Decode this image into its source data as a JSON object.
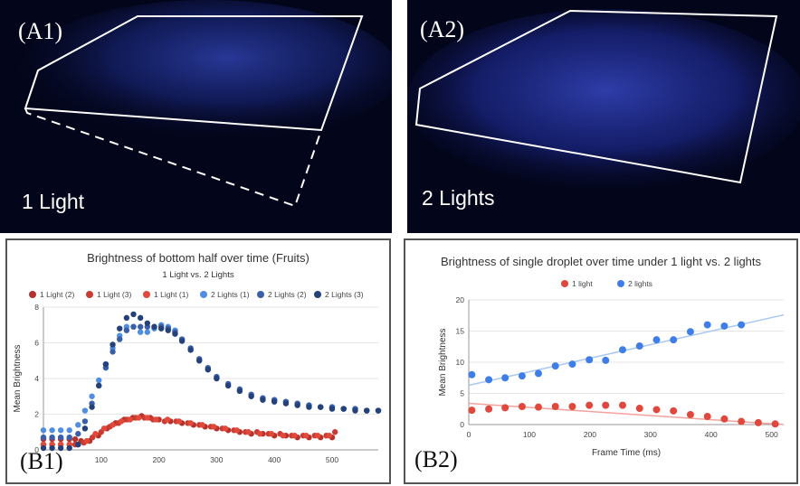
{
  "panels": {
    "a1": {
      "label": "(A1)",
      "caption": "1 Light"
    },
    "a2": {
      "label": "(A2)",
      "caption": "2 Lights"
    },
    "b1": {
      "label": "(B1)"
    },
    "b2": {
      "label": "(B2)"
    }
  },
  "colors": {
    "red_dark": "#b5312c",
    "red_mid": "#cc3a31",
    "red_light": "#e04a3a",
    "blue_light": "#4f8ee0",
    "blue_mid": "#3a5fa8",
    "blue_dark": "#25417a",
    "b2_red": "#e0483e",
    "b2_blue": "#3f7ee8",
    "b2_red_fit": "#f2a29b",
    "b2_blue_fit": "#a9c8f1"
  },
  "chart_data": [
    {
      "id": "B1",
      "type": "scatter",
      "title": "Brightness of bottom half over time (Fruits)",
      "subtitle": "1 Light vs. 2 Lights",
      "xlabel": "",
      "ylabel": "Mean Brightness",
      "xlim": [
        0,
        580
      ],
      "ylim": [
        0,
        8
      ],
      "xticks": [
        100,
        200,
        300,
        400,
        500
      ],
      "yticks": [
        0,
        2,
        4,
        6,
        8
      ],
      "legend": [
        "1 Light (2)",
        "1 Light (3)",
        "1 Light (1)",
        "2 Lights (1)",
        "2 Lights (2)",
        "2 Lights (3)"
      ],
      "series": [
        {
          "name": "1 Light (2)",
          "color_key": "red_dark",
          "x": [
            0,
            15,
            30,
            45,
            55,
            65,
            80,
            95,
            110,
            125,
            140,
            155,
            170,
            185,
            200,
            220,
            240,
            260,
            280,
            300,
            320,
            340,
            360,
            380,
            400,
            420,
            440,
            460,
            480,
            500
          ],
          "y": [
            0.6,
            0.6,
            0.6,
            0.6,
            0.6,
            0.5,
            0.5,
            0.8,
            1.2,
            1.5,
            1.7,
            1.8,
            1.9,
            1.8,
            1.7,
            1.6,
            1.5,
            1.4,
            1.3,
            1.2,
            1.1,
            1.0,
            0.9,
            0.9,
            0.8,
            0.8,
            0.7,
            0.7,
            0.7,
            0.7
          ]
        },
        {
          "name": "1 Light (3)",
          "color_key": "red_mid",
          "x": [
            0,
            15,
            30,
            45,
            55,
            70,
            85,
            100,
            115,
            130,
            145,
            160,
            175,
            190,
            210,
            230,
            250,
            270,
            290,
            310,
            330,
            350,
            370,
            390,
            410,
            430,
            450,
            470,
            490,
            505
          ],
          "y": [
            0.3,
            0.3,
            0.3,
            0.3,
            0.3,
            0.4,
            0.7,
            1.0,
            1.3,
            1.5,
            1.7,
            1.8,
            1.8,
            1.7,
            1.6,
            1.6,
            1.5,
            1.4,
            1.3,
            1.2,
            1.1,
            1.0,
            1.0,
            0.9,
            0.9,
            0.8,
            0.8,
            0.8,
            0.8,
            1.0
          ]
        },
        {
          "name": "1 Light (1)",
          "color_key": "red_light",
          "x": [
            0,
            15,
            30,
            45,
            60,
            75,
            90,
            105,
            120,
            135,
            150,
            165,
            180,
            195,
            215,
            235,
            255,
            275,
            295,
            315,
            335,
            355,
            375,
            395,
            415,
            435,
            455,
            475,
            495
          ],
          "y": [
            0.3,
            0.3,
            0.3,
            0.3,
            0.3,
            0.5,
            0.9,
            1.2,
            1.4,
            1.6,
            1.7,
            1.8,
            1.8,
            1.7,
            1.7,
            1.6,
            1.5,
            1.4,
            1.3,
            1.2,
            1.1,
            1.0,
            0.9,
            0.9,
            0.8,
            0.8,
            0.8,
            0.8,
            0.8
          ]
        },
        {
          "name": "2 Lights (1)",
          "color_key": "blue_light",
          "x": [
            0,
            15,
            30,
            45,
            60,
            72,
            84,
            96,
            108,
            120,
            132,
            144,
            156,
            168,
            180,
            192,
            204,
            216,
            228,
            240,
            255,
            270,
            285,
            300,
            320,
            340,
            360,
            380,
            400,
            420,
            440,
            460,
            480,
            500,
            520,
            540,
            560,
            580
          ],
          "y": [
            1.1,
            1.1,
            1.1,
            1.1,
            1.4,
            2.2,
            3.0,
            3.9,
            4.8,
            5.7,
            6.4,
            6.9,
            6.9,
            6.6,
            6.6,
            6.8,
            7.0,
            6.9,
            6.7,
            6.2,
            5.6,
            5.0,
            4.5,
            4.0,
            3.6,
            3.3,
            3.1,
            2.9,
            2.8,
            2.7,
            2.6,
            2.5,
            2.4,
            2.4,
            2.3,
            2.3,
            2.2,
            2.2
          ]
        },
        {
          "name": "2 Lights (2)",
          "color_key": "blue_mid",
          "x": [
            0,
            15,
            30,
            45,
            60,
            72,
            84,
            96,
            108,
            120,
            132,
            144,
            156,
            168,
            180,
            192,
            204,
            216,
            228,
            240,
            255,
            270,
            285,
            300,
            320,
            340,
            360,
            380,
            400,
            420,
            440,
            460,
            480,
            500,
            520,
            540,
            560,
            580
          ],
          "y": [
            0.7,
            0.7,
            0.7,
            0.7,
            0.9,
            1.6,
            2.6,
            3.6,
            4.6,
            5.5,
            6.2,
            6.7,
            6.9,
            6.9,
            6.9,
            6.9,
            6.9,
            6.8,
            6.6,
            6.2,
            5.7,
            5.1,
            4.6,
            4.1,
            3.7,
            3.4,
            3.1,
            2.9,
            2.8,
            2.7,
            2.6,
            2.5,
            2.4,
            2.4,
            2.3,
            2.3,
            2.2,
            2.2
          ]
        },
        {
          "name": "2 Lights (3)",
          "color_key": "blue_dark",
          "x": [
            0,
            15,
            30,
            45,
            60,
            72,
            84,
            96,
            108,
            120,
            132,
            144,
            156,
            168,
            180,
            192,
            204,
            216,
            228,
            240,
            255,
            270,
            285,
            300,
            320,
            340,
            360,
            380,
            400,
            420,
            440,
            460,
            480,
            500,
            520,
            540,
            560,
            580
          ],
          "y": [
            0.1,
            0.1,
            0.1,
            0.1,
            0.3,
            1.2,
            2.4,
            3.6,
            4.8,
            5.9,
            6.8,
            7.4,
            7.6,
            7.4,
            7.1,
            6.9,
            6.8,
            6.7,
            6.5,
            6.1,
            5.6,
            5.0,
            4.5,
            4.0,
            3.6,
            3.3,
            3.0,
            2.8,
            2.7,
            2.6,
            2.5,
            2.4,
            2.4,
            2.3,
            2.3,
            2.2,
            2.2,
            2.2
          ]
        }
      ]
    },
    {
      "id": "B2",
      "type": "scatter",
      "title": "Brightness of single droplet over time under 1 light vs. 2 lights",
      "xlabel": "Frame Time (ms)",
      "ylabel": "Mean Brightness",
      "xlim": [
        0,
        520
      ],
      "ylim": [
        0,
        20
      ],
      "xticks": [
        0,
        100,
        200,
        300,
        400,
        500
      ],
      "yticks": [
        0,
        5,
        10,
        15,
        20
      ],
      "legend": [
        "1 light",
        "2 lights"
      ],
      "series": [
        {
          "name": "1 light",
          "color_key": "b2_red",
          "x": [
            5,
            33,
            60,
            88,
            115,
            143,
            171,
            199,
            226,
            254,
            282,
            310,
            338,
            366,
            394,
            422,
            450,
            478,
            506
          ],
          "y": [
            2.3,
            2.5,
            2.7,
            2.9,
            2.8,
            2.9,
            2.9,
            3.1,
            3.1,
            3.1,
            2.6,
            2.4,
            2.2,
            1.6,
            1.3,
            0.9,
            0.5,
            0.3,
            0.1
          ],
          "trendline": {
            "x": [
              0,
              520
            ],
            "y": [
              3.4,
              0.0
            ]
          }
        },
        {
          "name": "2 lights",
          "color_key": "b2_blue",
          "x": [
            5,
            33,
            60,
            88,
            115,
            143,
            171,
            199,
            226,
            254,
            282,
            310,
            338,
            366,
            394,
            422,
            450
          ],
          "y": [
            8.0,
            7.2,
            7.5,
            7.8,
            8.2,
            9.4,
            9.7,
            10.4,
            10.3,
            12.0,
            12.6,
            13.6,
            13.6,
            14.9,
            16.0,
            15.8,
            16.0
          ],
          "trendline": {
            "x": [
              0,
              520
            ],
            "y": [
              6.3,
              17.6
            ]
          }
        }
      ]
    }
  ]
}
